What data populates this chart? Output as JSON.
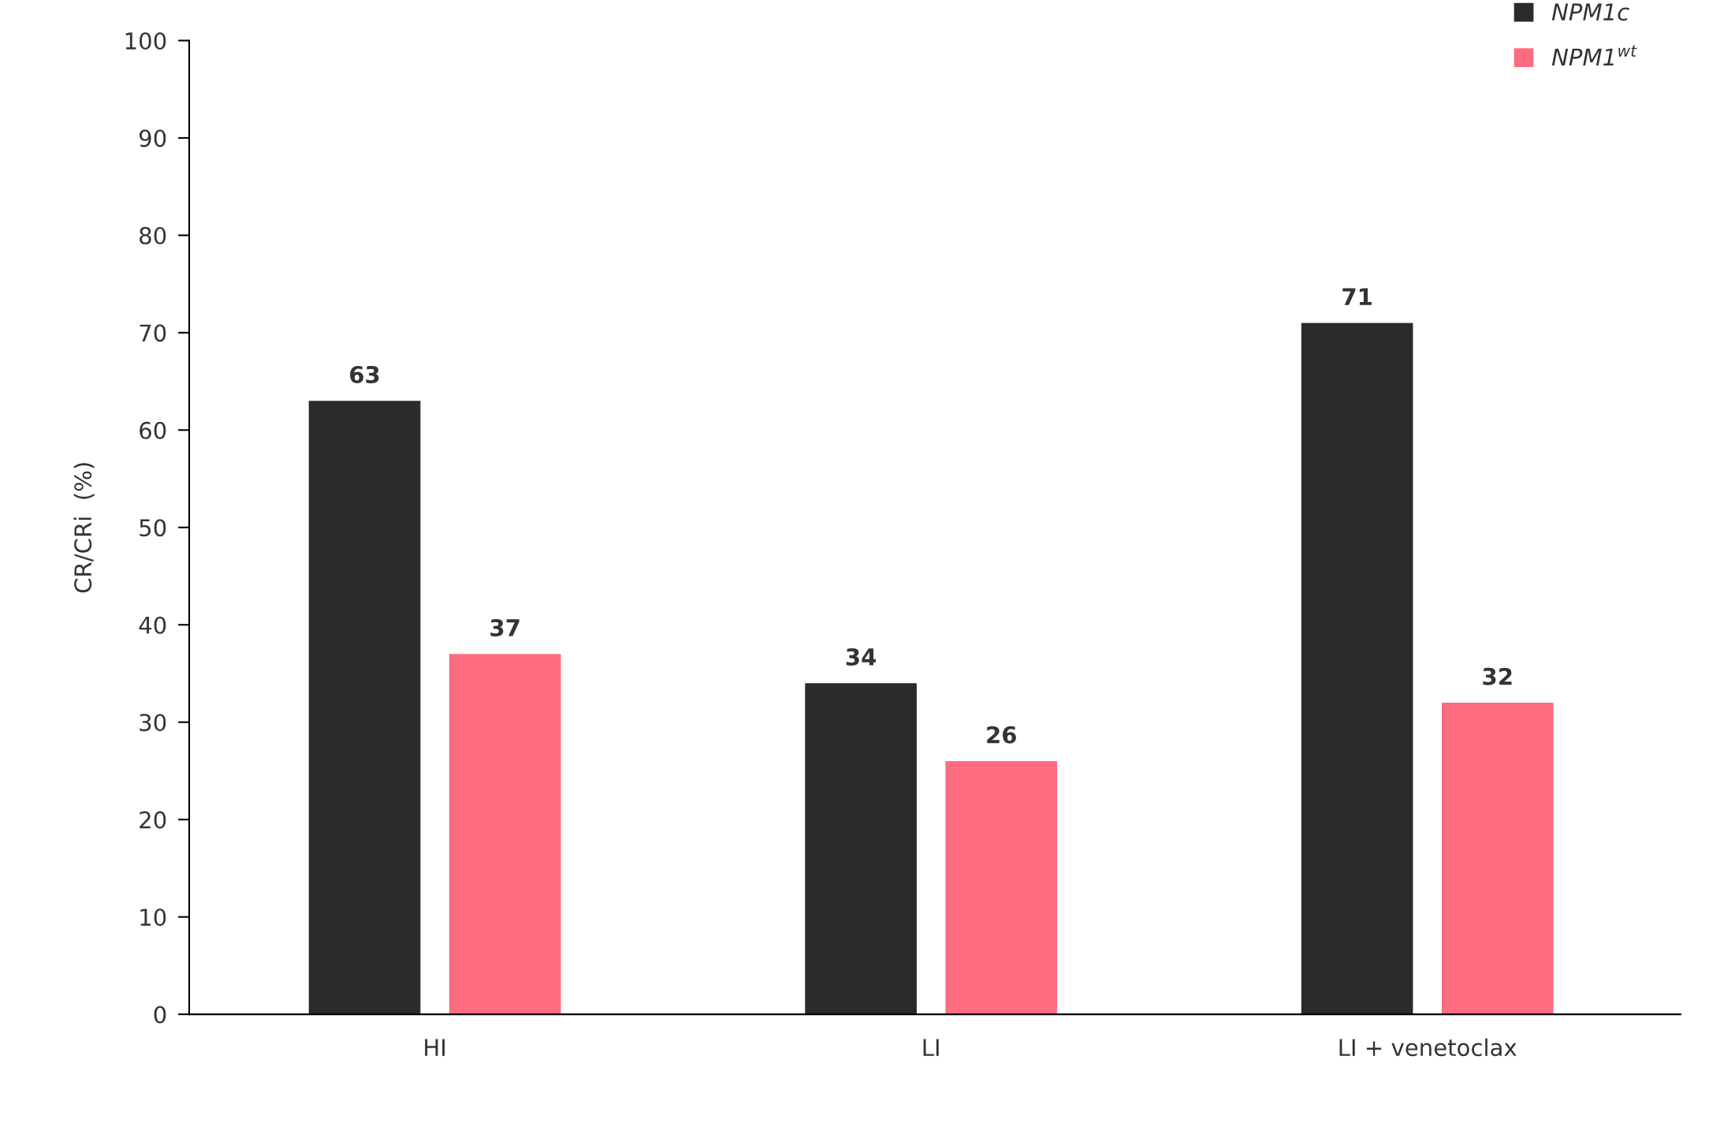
{
  "chart_data": {
    "type": "bar",
    "ylabel": "CR/CRi  (%)",
    "categories": [
      "HI",
      "LI",
      "LI + venetoclax"
    ],
    "series": [
      {
        "name": "NPM1c",
        "color": "#2d2a2b",
        "values": [
          63,
          34,
          71
        ]
      },
      {
        "name": "NPM1$^{wt}$",
        "color": "#ff6b80",
        "values": [
          37,
          26,
          32
        ]
      }
    ],
    "ylim": [
      0,
      100
    ],
    "yticks": [
      0,
      10,
      20,
      30,
      40,
      50,
      60,
      70,
      80,
      90,
      100
    ],
    "data_labels": true,
    "legend": "top right",
    "grid": false
  }
}
